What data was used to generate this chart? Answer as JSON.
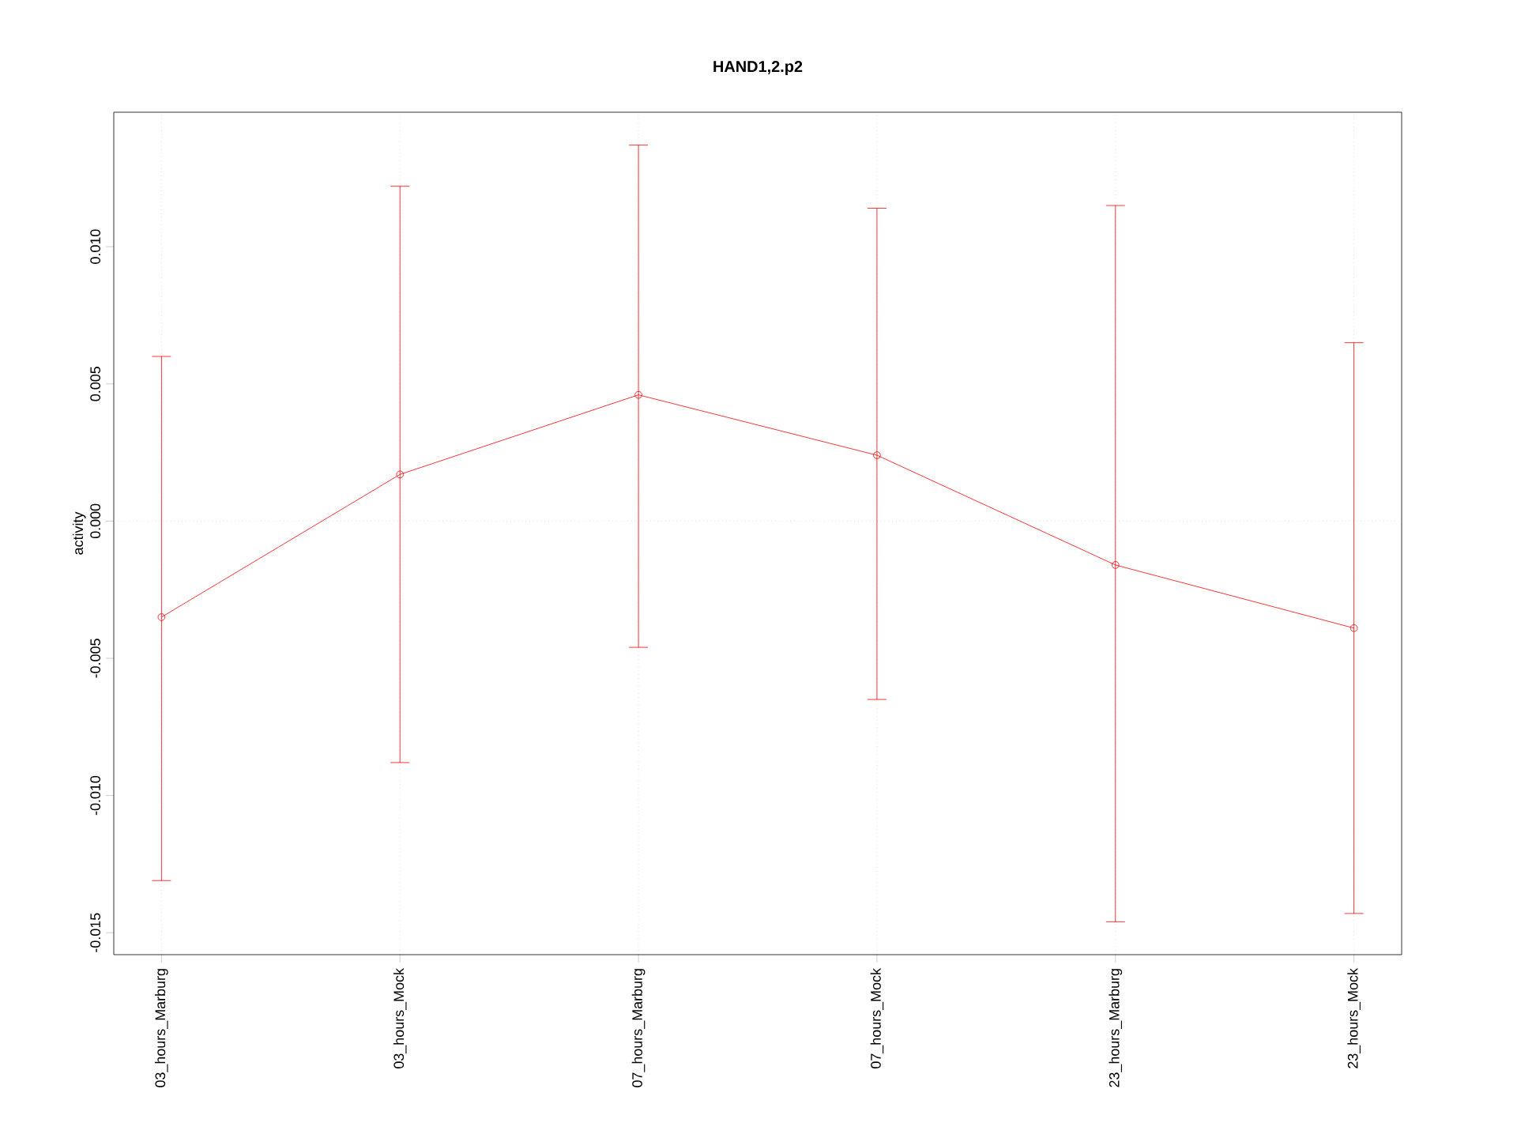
{
  "chart_data": {
    "type": "line",
    "title": "HAND1,2.p2",
    "ylabel": "activity",
    "categories": [
      "03_hours_Marburg",
      "03_hours_Mock",
      "07_hours_Marburg",
      "07_hours_Mock",
      "23_hours_Marburg",
      "23_hours_Mock"
    ],
    "series": [
      {
        "color": "#ff0000",
        "values": [
          -0.0035,
          0.0017,
          0.0046,
          0.0024,
          -0.0016,
          -0.0039
        ],
        "errors": [
          [
            -0.0131,
            0.006
          ],
          [
            -0.0088,
            0.0122
          ],
          [
            -0.0046,
            0.0137
          ],
          [
            -0.0065,
            0.0114
          ],
          [
            -0.0146,
            0.0115
          ],
          [
            -0.0143,
            0.0065
          ]
        ]
      }
    ],
    "ylim": [
      -0.0158,
      0.0149
    ],
    "yticks": [
      {
        "value": -0.015,
        "label": "-0.015"
      },
      {
        "value": -0.01,
        "label": "-0.010"
      },
      {
        "value": -0.005,
        "label": "-0.005"
      },
      {
        "value": 0,
        "label": "0.000"
      },
      {
        "value": 0.005,
        "label": "0.005"
      },
      {
        "value": 0.01,
        "label": "0.010"
      }
    ],
    "grid": "x",
    "marker": "circle",
    "line_style": "solid",
    "ref_lines": [
      {
        "axis": "y",
        "value": 0
      }
    ]
  }
}
